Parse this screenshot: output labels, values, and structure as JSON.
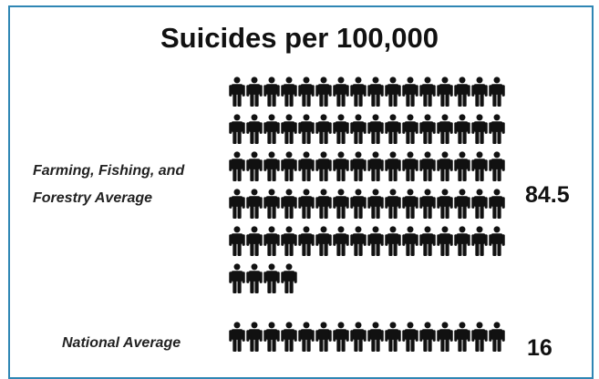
{
  "chart_data": {
    "type": "pictograph",
    "title": "Suicides per 100,000",
    "icon": "person-icon",
    "icon_color": "#111111",
    "rows": [
      {
        "label_lines": [
          "Farming, Fishing, and",
          "Forestry Average"
        ],
        "value": 84.5,
        "value_label": "84.5"
      },
      {
        "label_lines": [
          "National Average"
        ],
        "value": 16,
        "value_label": "16"
      }
    ]
  },
  "frame_color": "#2f86b4"
}
